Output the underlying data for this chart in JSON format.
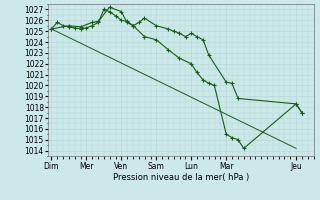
{
  "background_color": "#cce8e8",
  "grid_color": "#b8d8d8",
  "line_color": "#1a5c1a",
  "marker_color": "#1a5c1a",
  "title": "Pression niveau de la mer( hPa )",
  "ylim": [
    1013.5,
    1027.5
  ],
  "yticks": [
    1014,
    1015,
    1016,
    1017,
    1018,
    1019,
    1020,
    1021,
    1022,
    1023,
    1024,
    1025,
    1026,
    1027
  ],
  "day_labels": [
    "Dim",
    "Mer",
    "Ven",
    "Sam",
    "Lun",
    "Mar",
    "Jeu"
  ],
  "day_positions": [
    0,
    0.5,
    1.0,
    1.5,
    2.0,
    2.5,
    3.5
  ],
  "xlim": [
    -0.05,
    3.75
  ],
  "line1_x": [
    0.0,
    0.08,
    0.17,
    0.25,
    0.33,
    0.42,
    0.5,
    0.58,
    0.67,
    0.75,
    0.83,
    0.92,
    1.0,
    1.08,
    1.17,
    1.25,
    1.33,
    1.5,
    1.67,
    1.75,
    1.83,
    1.92,
    2.0,
    2.08,
    2.17,
    2.25,
    2.5,
    2.58,
    2.67,
    3.5,
    3.58
  ],
  "line1_y": [
    1025.2,
    1025.8,
    1025.5,
    1025.4,
    1025.3,
    1025.2,
    1025.3,
    1025.5,
    1025.8,
    1027.0,
    1026.8,
    1026.4,
    1026.0,
    1025.9,
    1025.5,
    1025.8,
    1026.2,
    1025.5,
    1025.2,
    1025.0,
    1024.8,
    1024.5,
    1024.8,
    1024.5,
    1024.2,
    1022.8,
    1020.3,
    1020.2,
    1018.8,
    1018.3,
    1017.5
  ],
  "line2_x": [
    0.0,
    0.25,
    0.42,
    0.58,
    0.67,
    0.83,
    1.0,
    1.08,
    1.17,
    1.33,
    1.5,
    1.67,
    1.83,
    2.0,
    2.08,
    2.17,
    2.25,
    2.33,
    2.5,
    2.58,
    2.67,
    2.75,
    3.5,
    3.58
  ],
  "line2_y": [
    1025.2,
    1025.5,
    1025.4,
    1025.8,
    1025.9,
    1027.2,
    1026.8,
    1025.8,
    1025.5,
    1024.5,
    1024.2,
    1023.3,
    1022.5,
    1022.0,
    1021.2,
    1020.5,
    1020.2,
    1020.0,
    1015.5,
    1015.2,
    1015.0,
    1014.2,
    1018.3,
    1017.5
  ],
  "line3_x": [
    0.0,
    3.5
  ],
  "line3_y": [
    1025.2,
    1014.2
  ]
}
